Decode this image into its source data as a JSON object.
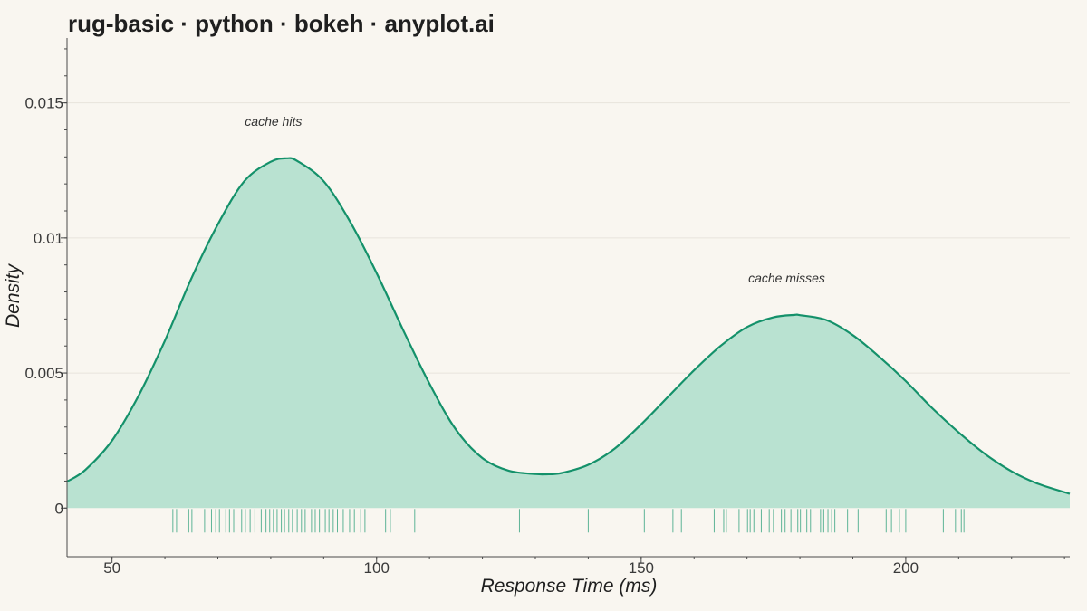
{
  "chart_data": {
    "type": "area",
    "title": "rug-basic · python · bokeh · anyplot.ai",
    "xlabel": "Response Time (ms)",
    "ylabel": "Density",
    "xlim": [
      41.5,
      231
    ],
    "ylim": [
      -0.0018,
      0.0174
    ],
    "x_ticks": [
      50,
      100,
      150,
      200
    ],
    "x_tick_labels": [
      "50",
      "100",
      "150",
      "200"
    ],
    "y_ticks": [
      0,
      0.005,
      0.01,
      0.015
    ],
    "y_tick_labels": [
      "0",
      "0.005",
      "0.01",
      "0.015"
    ],
    "grid": true,
    "colors": {
      "line": "#14916a",
      "fill": "#b9e2d1",
      "rug": "#2a9e78",
      "background": "#f9f6f0"
    },
    "density_curve": {
      "x": [
        41.5,
        45,
        50,
        55,
        60,
        65,
        70,
        75,
        80,
        83,
        85,
        90,
        95,
        100,
        105,
        110,
        115,
        120,
        125,
        130,
        132,
        135,
        140,
        145,
        150,
        155,
        160,
        165,
        170,
        175,
        179,
        180,
        185,
        190,
        195,
        200,
        205,
        210,
        215,
        220,
        225,
        231
      ],
      "y": [
        0.00098,
        0.00142,
        0.0025,
        0.00415,
        0.0062,
        0.0085,
        0.0105,
        0.0121,
        0.01282,
        0.01295,
        0.01285,
        0.0121,
        0.0106,
        0.0087,
        0.0066,
        0.0046,
        0.0029,
        0.00185,
        0.00138,
        0.00126,
        0.00125,
        0.0013,
        0.0016,
        0.0022,
        0.0031,
        0.0041,
        0.0051,
        0.006,
        0.0067,
        0.00706,
        0.00715,
        0.00714,
        0.00696,
        0.0064,
        0.0056,
        0.0047,
        0.0037,
        0.0028,
        0.002,
        0.00136,
        0.0009,
        0.00053
      ]
    },
    "rug": [
      61.5,
      62.2,
      64.5,
      65.1,
      67.5,
      68.8,
      69.6,
      70.3,
      71.5,
      72.2,
      73.0,
      74.5,
      75.2,
      76.1,
      77.0,
      78.2,
      79.1,
      79.8,
      80.5,
      81.2,
      82.0,
      82.6,
      83.4,
      84.1,
      85.0,
      85.8,
      86.5,
      87.7,
      88.4,
      89.2,
      90.3,
      91.0,
      91.8,
      92.6,
      93.7,
      94.9,
      95.8,
      97.0,
      97.8,
      101.7,
      102.6,
      107.2,
      127.0,
      140.0,
      150.6,
      156.0,
      157.6,
      163.8,
      165.6,
      166.1,
      168.5,
      169.8,
      170.1,
      170.6,
      171.3,
      172.7,
      174.2,
      175.0,
      176.5,
      177.2,
      178.3,
      179.6,
      180.1,
      181.3,
      182.0,
      183.9,
      184.5,
      185.3,
      186.0,
      186.6,
      189.0,
      191.0,
      196.3,
      197.3,
      198.8,
      200.0,
      207.1,
      209.4,
      210.5,
      211.0
    ],
    "annotations": [
      {
        "text": "cache hits",
        "x": 80.5,
        "y": 0.01415
      },
      {
        "text": "cache misses",
        "x": 177.5,
        "y": 0.00835
      }
    ]
  }
}
